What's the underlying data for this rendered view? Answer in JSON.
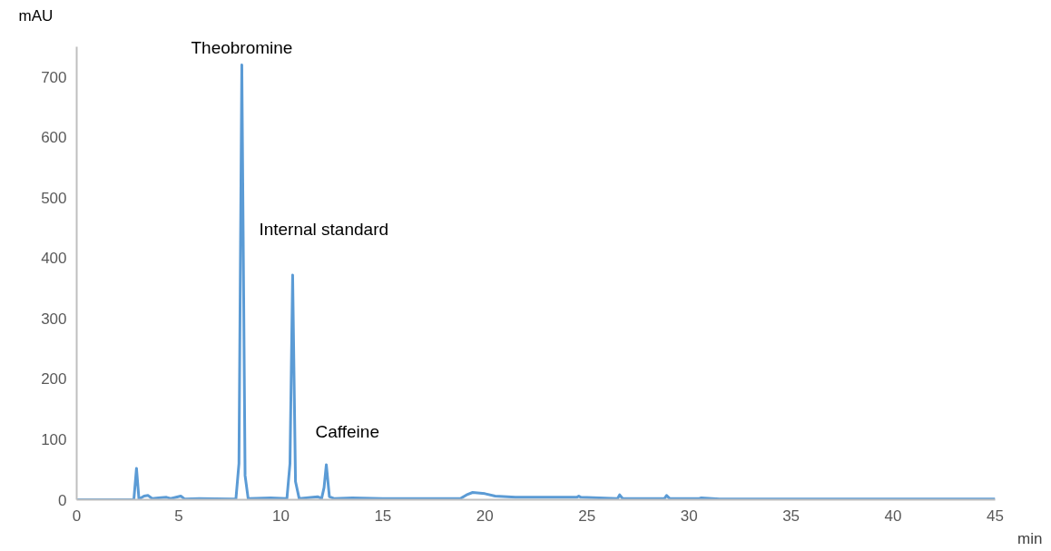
{
  "chart_data": {
    "type": "line",
    "xlabel": "min",
    "ylabel": "mAU",
    "x": [
      0,
      2.8,
      2.93,
      3.05,
      3.3,
      3.5,
      3.7,
      4.0,
      4.4,
      4.6,
      5.1,
      5.3,
      6.0,
      7.8,
      7.95,
      8.09,
      8.25,
      8.4,
      9.5,
      10.3,
      10.45,
      10.58,
      10.72,
      10.9,
      11.8,
      12.0,
      12.12,
      12.23,
      12.38,
      12.6,
      13.5,
      15,
      18.8,
      19.1,
      19.4,
      20,
      20.5,
      21.5,
      24.5,
      24.6,
      24.7,
      26.5,
      26.6,
      26.75,
      28.8,
      28.9,
      29.05,
      30.5,
      30.6,
      31.5,
      45
    ],
    "series": [
      {
        "color": "#5b9bd5",
        "values": [
          0,
          0,
          52,
          1,
          6,
          7,
          2,
          3,
          4,
          2,
          6,
          1,
          2,
          1,
          60,
          720,
          40,
          2,
          3,
          2,
          60,
          372,
          30,
          2,
          5,
          2,
          20,
          58,
          5,
          2,
          3,
          2,
          2,
          8,
          12,
          10,
          6,
          4,
          4,
          6,
          4,
          2,
          8,
          2,
          2,
          7,
          2,
          2,
          3,
          1,
          1
        ]
      }
    ],
    "xlim": [
      0,
      45
    ],
    "ylim": [
      0,
      750
    ],
    "xticks": [
      0,
      5,
      10,
      15,
      20,
      25,
      30,
      35,
      40,
      45
    ],
    "yticks": [
      0,
      100,
      200,
      300,
      400,
      500,
      600,
      700
    ],
    "grid": false,
    "marker": "none",
    "line_style": "solid",
    "annotations": [
      {
        "text": "Theobromine",
        "x": 8.09,
        "y": 720
      },
      {
        "text": "Internal standard",
        "x": 10.58,
        "y": 372
      },
      {
        "text": "Caffeine",
        "x": 12.23,
        "y": 58
      }
    ]
  }
}
